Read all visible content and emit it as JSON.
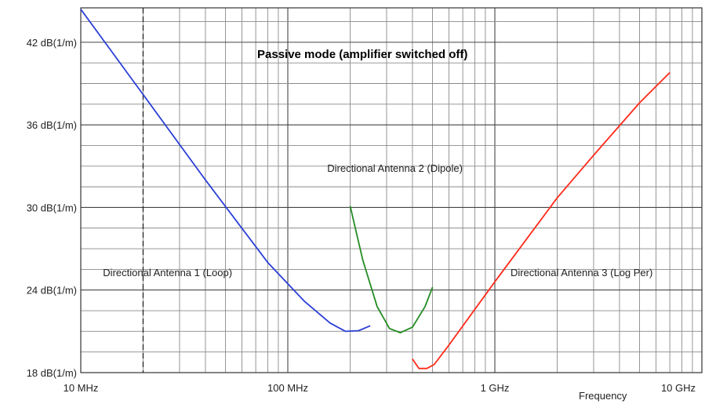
{
  "chart_data": {
    "type": "line",
    "title": "Passive mode (amplifier switched off)",
    "xlabel": "Frequency",
    "ylabel": "",
    "x_scale": "log",
    "xlim": [
      10,
      10000
    ],
    "ylim": [
      18,
      44.5
    ],
    "grid": true,
    "legend": "none",
    "x_tick_labels": [
      {
        "value": 10,
        "label": "10 MHz"
      },
      {
        "value": 100,
        "label": "100 MHz"
      },
      {
        "value": 1000,
        "label": "1 GHz"
      },
      {
        "value": 10000,
        "label": "10 GHz"
      }
    ],
    "y_tick_labels": [
      {
        "value": 18,
        "label": "18 dB(1/m)"
      },
      {
        "value": 24,
        "label": "24 dB(1/m)"
      },
      {
        "value": 30,
        "label": "30 dB(1/m)"
      },
      {
        "value": 36,
        "label": "36 dB(1/m)"
      },
      {
        "value": 42,
        "label": "42 dB(1/m)"
      }
    ],
    "reference_line_x": 20,
    "series": [
      {
        "name": "Directional Antenna 1 (Loop)",
        "color": "#2b3fd6",
        "x": [
          10,
          20,
          40,
          80,
          120,
          160,
          190,
          220,
          250
        ],
        "y": [
          44.4,
          38.2,
          32.0,
          26.0,
          23.2,
          21.6,
          21.0,
          21.05,
          21.4
        ]
      },
      {
        "name": "Directional Antenna 2 (Dipole)",
        "color": "#238c23",
        "x": [
          200,
          230,
          270,
          310,
          350,
          400,
          460,
          500
        ],
        "y": [
          30.1,
          26.2,
          22.8,
          21.2,
          20.9,
          21.3,
          22.8,
          24.2
        ]
      },
      {
        "name": "Directional Antenna 3 (Log Per)",
        "color": "#ff2a1a",
        "x": [
          400,
          430,
          470,
          510,
          600,
          1000,
          2000,
          3000,
          5000,
          7000
        ],
        "y": [
          19.0,
          18.3,
          18.3,
          18.6,
          20.0,
          24.6,
          30.7,
          33.8,
          37.6,
          39.8
        ]
      }
    ],
    "annotations": [
      {
        "text": "Directional Antenna 1 (Loop)",
        "x": 12.8,
        "y": 25.0
      },
      {
        "text": "Directional Antenna 2 (Dipole)",
        "x": 155,
        "y": 32.6
      },
      {
        "text": "Directional Antenna 3 (Log Per)",
        "x": 1190,
        "y": 25.0
      }
    ]
  }
}
